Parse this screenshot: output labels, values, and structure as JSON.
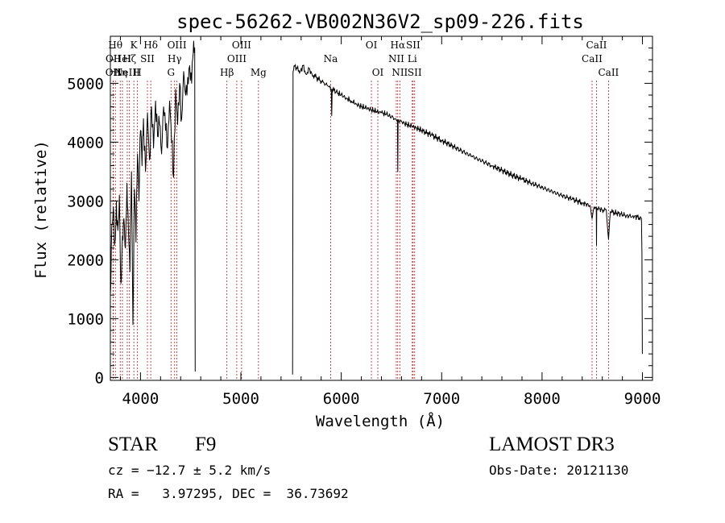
{
  "chart_data": {
    "type": "line",
    "title": "spec-56262-VB002N36V2_sp09-226.fits",
    "xlabel": "Wavelength (Å)",
    "ylabel": "Flux (relative)",
    "xlim": [
      3700,
      9100
    ],
    "ylim": [
      -50,
      5800
    ],
    "x_ticks": [
      4000,
      5000,
      6000,
      7000,
      8000,
      9000
    ],
    "x_tick_labels": [
      "4000",
      "5000",
      "6000",
      "7000",
      "8000",
      "9000"
    ],
    "y_ticks": [
      0,
      1000,
      2000,
      3000,
      4000,
      5000
    ],
    "y_tick_labels": [
      "0",
      "1000",
      "2000",
      "3000",
      "4000",
      "5000"
    ],
    "spectrum_segments": [
      {
        "x": [
          3700,
          3715,
          3730,
          3745,
          3760,
          3775,
          3790,
          3805,
          3820,
          3835,
          3850,
          3865,
          3880,
          3895,
          3910,
          3925,
          3940,
          3955,
          3970,
          3985,
          4000,
          4015,
          4030,
          4050,
          4070,
          4090,
          4110,
          4130,
          4150,
          4170,
          4190,
          4210,
          4230,
          4250,
          4270,
          4290,
          4310,
          4330,
          4350,
          4370,
          4390,
          4410,
          4430,
          4450,
          4470,
          4490,
          4510,
          4525,
          4540,
          4545
        ],
        "y": [
          1400,
          2600,
          2900,
          2300,
          3000,
          2500,
          3100,
          1600,
          2400,
          2700,
          2200,
          3300,
          2500,
          1800,
          3500,
          900,
          3200,
          2300,
          3800,
          3000,
          4200,
          3600,
          4400,
          3500,
          4500,
          3700,
          4600,
          3900,
          4700,
          4100,
          4300,
          3800,
          4600,
          4200,
          3900,
          4700,
          4000,
          3400,
          4900,
          4300,
          5000,
          4400,
          5200,
          4800,
          5100,
          5300,
          5000,
          5500,
          5600,
          100
        ]
      },
      {
        "x": [
          5515,
          5520,
          5530,
          5560,
          5590,
          5620,
          5650,
          5680,
          5710,
          5750,
          5790,
          5830,
          5870,
          5900,
          5905,
          5910,
          5950,
          6000,
          6050,
          6100,
          6150,
          6200,
          6250,
          6300,
          6350,
          6400,
          6450,
          6500,
          6540,
          6560,
          6563,
          6566,
          6600,
          6650,
          6700,
          6750,
          6800,
          6900,
          7000,
          7100,
          7200,
          7300,
          7400,
          7500,
          7600,
          7700,
          7800,
          7900,
          8000,
          8100,
          8200,
          8300,
          8400,
          8480,
          8498,
          8520,
          8540,
          8542,
          8545,
          8600,
          8640,
          8662,
          8680,
          8720,
          8780,
          8840,
          8900,
          8950,
          8990,
          8995,
          8999
        ],
        "y": [
          50,
          5200,
          5300,
          5250,
          5200,
          5300,
          5150,
          5250,
          5150,
          5100,
          5050,
          5000,
          4950,
          4900,
          4450,
          4900,
          4850,
          4800,
          4750,
          4700,
          4650,
          4600,
          4580,
          4550,
          4520,
          4500,
          4470,
          4430,
          4400,
          4380,
          3500,
          4380,
          4350,
          4300,
          4270,
          4240,
          4200,
          4120,
          4030,
          3940,
          3850,
          3760,
          3680,
          3600,
          3520,
          3440,
          3370,
          3300,
          3230,
          3160,
          3090,
          3030,
          2970,
          2920,
          2700,
          2900,
          2890,
          2250,
          2880,
          2850,
          2840,
          2350,
          2820,
          2800,
          2780,
          2750,
          2740,
          2730,
          2700,
          2100,
          400
        ]
      }
    ],
    "line_markers": [
      {
        "wave": 3750,
        "label": "Hθ",
        "row": 0
      },
      {
        "wave": 3729,
        "label": "OII",
        "row": 1
      },
      {
        "wave": 3727,
        "label": "OII",
        "row": 2
      },
      {
        "wave": 3798,
        "label": "Hη",
        "row": 2
      },
      {
        "wave": 3820,
        "label": "HeI",
        "row": 1
      },
      {
        "wave": 3868,
        "label": "NeIII",
        "row": 2
      },
      {
        "wave": 3890,
        "label": "Hζ",
        "row": 1
      },
      {
        "wave": 3934,
        "label": "K",
        "row": 0
      },
      {
        "wave": 3970,
        "label": "H",
        "row": 2
      },
      {
        "wave": 4069,
        "label": "SII",
        "row": 1
      },
      {
        "wave": 4102,
        "label": "Hδ",
        "row": 0
      },
      {
        "wave": 4304,
        "label": "G",
        "row": 2
      },
      {
        "wave": 4340,
        "label": "Hγ",
        "row": 1
      },
      {
        "wave": 4363,
        "label": "OIII",
        "row": 0
      },
      {
        "wave": 4861,
        "label": "Hβ",
        "row": 2
      },
      {
        "wave": 4959,
        "label": "OIII",
        "row": 1
      },
      {
        "wave": 5007,
        "label": "OIII",
        "row": 0
      },
      {
        "wave": 5175,
        "label": "Mg",
        "row": 2
      },
      {
        "wave": 5894,
        "label": "Na",
        "row": 1
      },
      {
        "wave": 6300,
        "label": "OI",
        "row": 0
      },
      {
        "wave": 6364,
        "label": "OI",
        "row": 2
      },
      {
        "wave": 6548,
        "label": "NII",
        "row": 1
      },
      {
        "wave": 6563,
        "label": "Hα",
        "row": 0
      },
      {
        "wave": 6583,
        "label": "NII",
        "row": 2
      },
      {
        "wave": 6707,
        "label": "Li",
        "row": 1
      },
      {
        "wave": 6716,
        "label": "SII",
        "row": 0
      },
      {
        "wave": 6731,
        "label": "SII",
        "row": 2
      },
      {
        "wave": 8498,
        "label": "CaII",
        "row": 1
      },
      {
        "wave": 8542,
        "label": "CaII",
        "row": 0
      },
      {
        "wave": 8662,
        "label": "CaII",
        "row": 2
      }
    ]
  },
  "info": {
    "object_class": "STAR",
    "subclass": "F9",
    "survey": "LAMOST DR3",
    "redshift": "cz = −12.7 ± 5.2 km/s",
    "obs_date": "Obs-Date: 20121130",
    "coords": "RA =   3.97295, DEC =  36.73692"
  }
}
